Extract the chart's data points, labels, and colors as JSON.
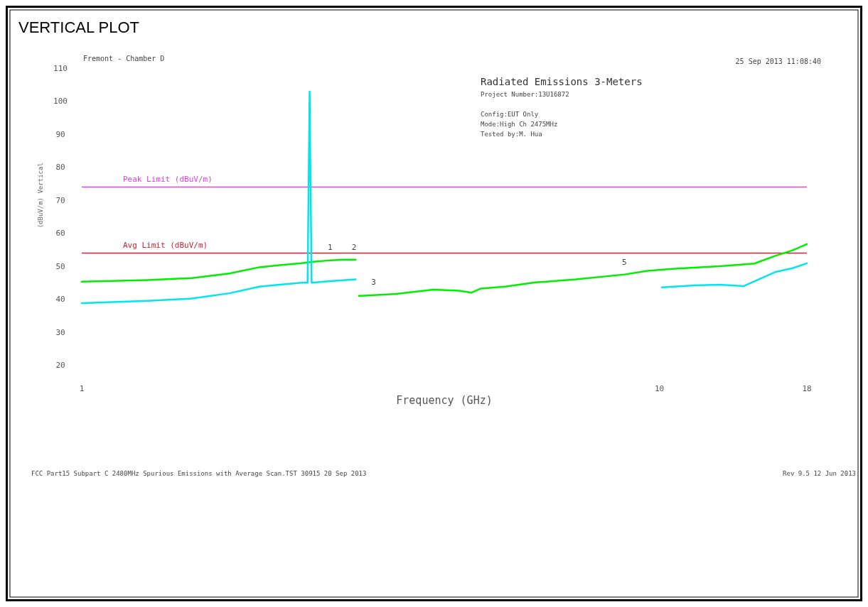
{
  "chart_data": {
    "type": "line",
    "title": "VERTICAL PLOT",
    "subtitle": "Radiated Emissions 3-Meters",
    "xlabel": "Frequency (GHz)",
    "ylabel": "(dBuV/m) Vertical",
    "log": "x",
    "xlim": [
      1,
      18
    ],
    "xticks": [
      1,
      10,
      18
    ],
    "ylim": [
      20,
      110
    ],
    "yticks": [
      20,
      30,
      40,
      50,
      60,
      70,
      80,
      90,
      100,
      110
    ],
    "grid": false,
    "marker": "none",
    "line_style": "solid",
    "series": [
      {
        "color": "#00ee00",
        "x": [
          1.0,
          1.3,
          1.55,
          1.8,
          2.03,
          2.2,
          2.4,
          2.47,
          2.5,
          2.69,
          2.85,
          2.98,
          3.0,
          3.02,
          3.5,
          4.06,
          4.5,
          4.73,
          4.9,
          5.4,
          6.1,
          7.17,
          8.7,
          9.53,
          10.5,
          12.7,
          14.6,
          15.9,
          17.0,
          18.0
        ],
        "values": [
          45.3,
          45.8,
          46.4,
          47.8,
          49.7,
          50.3,
          50.9,
          51.2,
          51.3,
          51.8,
          52.0,
          52.0,
          null,
          41.0,
          41.6,
          42.9,
          42.6,
          42.0,
          43.2,
          43.8,
          45.1,
          46.0,
          47.5,
          48.6,
          49.2,
          50.0,
          50.8,
          53.2,
          54.8,
          56.7
        ]
      },
      {
        "color": "#00e5ee",
        "x": [
          1.0,
          1.3,
          1.55,
          1.8,
          2.03,
          2.2,
          2.4,
          2.46,
          2.48,
          2.5,
          2.69,
          2.98,
          3.0,
          10.1,
          11.5,
          12.7,
          14.0,
          15.9,
          17.0,
          18.0
        ],
        "values": [
          38.8,
          39.5,
          40.2,
          41.8,
          43.8,
          44.4,
          45.0,
          45.0,
          102.9,
          45.0,
          45.5,
          46.0,
          null,
          43.6,
          44.2,
          44.4,
          44.0,
          48.3,
          49.4,
          50.9
        ]
      }
    ],
    "ref_lines": [
      {
        "axis": "y",
        "value": 74,
        "label": "Peak Limit (dBuV/m)",
        "color": "#e040e0"
      },
      {
        "axis": "y",
        "value": 54,
        "label": "Avg Limit (dBuV/m)",
        "color": "#d02030"
      }
    ],
    "annotations": [
      "Fremont - Chamber D",
      "25 Sep 2013   11:08:40",
      "Project Number:13U16872",
      "Config:EUT Only",
      "Mode:High Ch 2475MHz",
      "Tested by:M. Hua",
      "FCC Part15 Subpart C 2480MHz Spurious Emissions with Average Scan.TST 30915 20 Sep 2013",
      "Rev 9.5 12 Jun 2013",
      {
        "text": "1",
        "x": 2.69,
        "y": 52
      },
      {
        "text": "2",
        "x": 2.96,
        "y": 52
      },
      {
        "text": "3",
        "x": 3.2,
        "y": 41.5
      },
      {
        "text": "5",
        "x": 8.7,
        "y": 47.5
      }
    ]
  }
}
